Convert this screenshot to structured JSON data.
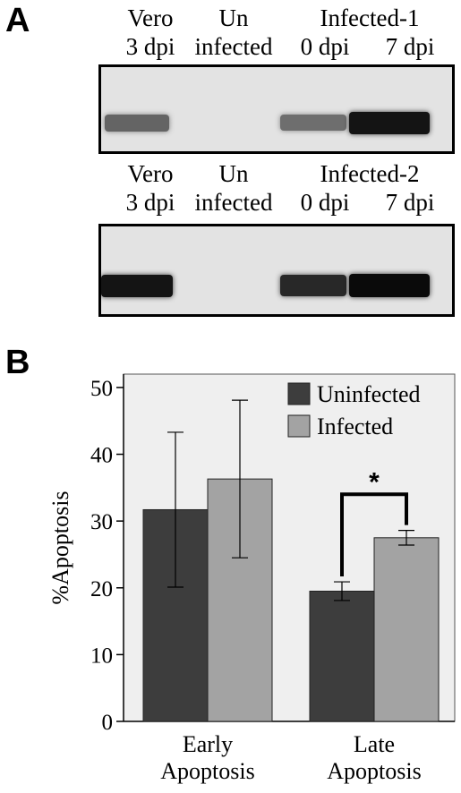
{
  "panel_a": {
    "letter": "A",
    "gels": [
      {
        "group_label": "Infected-1",
        "lanes": [
          {
            "line1": "Vero",
            "line2": "3 dpi",
            "band_intensity": 0.55
          },
          {
            "line1": "Un",
            "line2": "infected",
            "band_intensity": 0.0
          },
          {
            "line1": "",
            "line2": "0 dpi",
            "band_intensity": 0.5
          },
          {
            "line1": "",
            "line2": "7 dpi",
            "band_intensity": 0.95
          }
        ]
      },
      {
        "group_label": "Infected-2",
        "lanes": [
          {
            "line1": "Vero",
            "line2": "3 dpi",
            "band_intensity": 0.95
          },
          {
            "line1": "Un",
            "line2": "infected",
            "band_intensity": 0.0
          },
          {
            "line1": "",
            "line2": "0 dpi",
            "band_intensity": 0.85
          },
          {
            "line1": "",
            "line2": "7 dpi",
            "band_intensity": 1.0
          }
        ]
      }
    ]
  },
  "panel_b": {
    "letter": "B",
    "significance_marker": "*"
  },
  "chart_data": {
    "type": "bar",
    "categories": [
      "Early\nApoptosis",
      "Late\nApoptosis"
    ],
    "series": [
      {
        "name": "Uninfected",
        "values": [
          31.7,
          19.5
        ],
        "errors": [
          11.6,
          1.4
        ],
        "color": "#3d3d3d"
      },
      {
        "name": "Infected",
        "values": [
          36.3,
          27.5
        ],
        "errors": [
          11.8,
          1.1
        ],
        "color": "#a3a3a3"
      }
    ],
    "title": "",
    "xlabel": "",
    "ylabel": "%Apoptosis",
    "ylim": [
      0,
      52
    ],
    "yticks": [
      0,
      10,
      20,
      30,
      40,
      50
    ],
    "grid": false,
    "legend_position": "top-right",
    "plot_background": "#efefef"
  }
}
